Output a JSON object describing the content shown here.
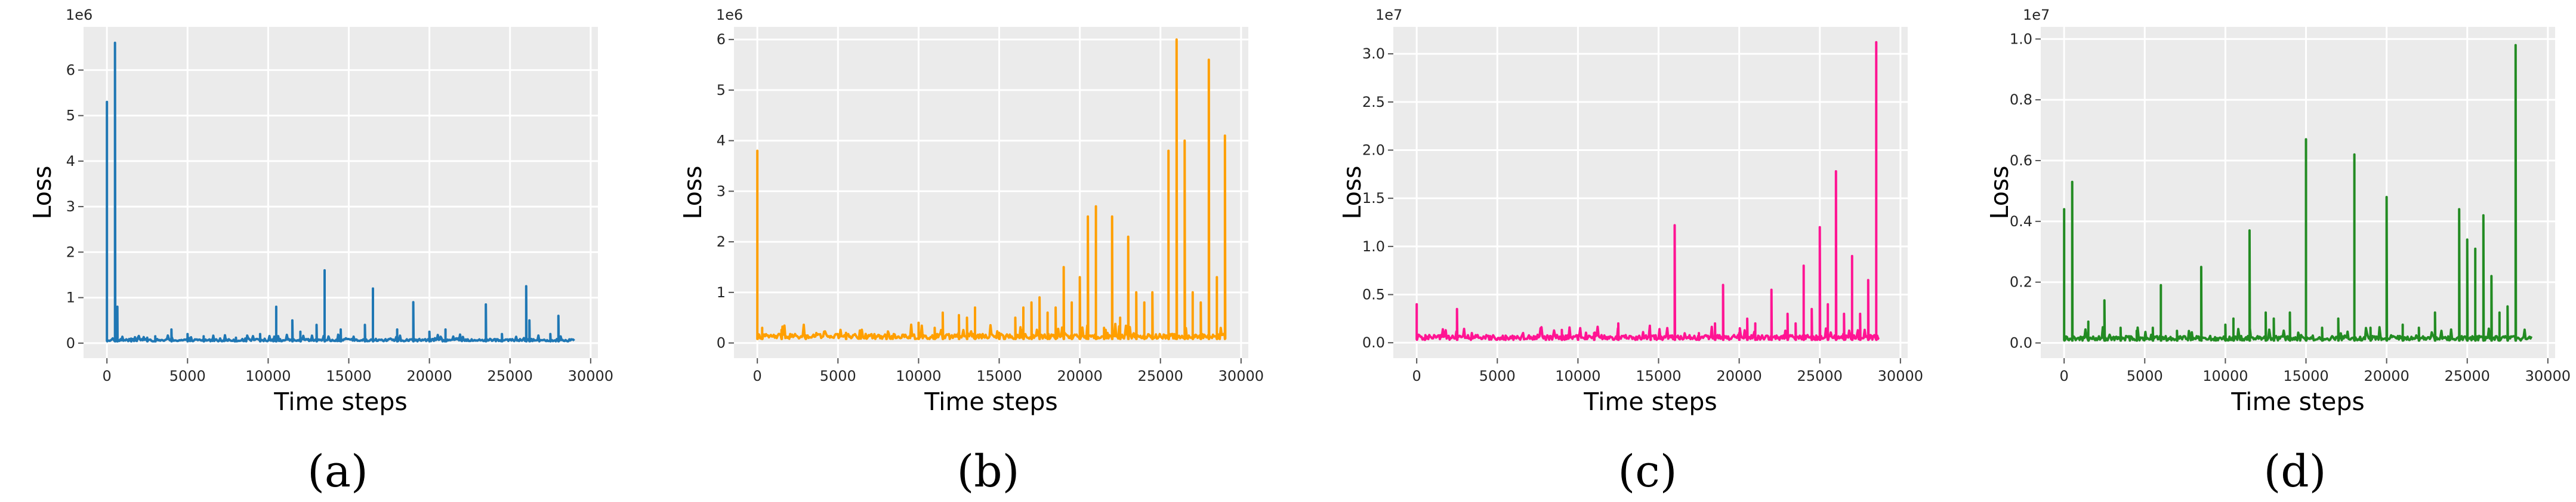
{
  "chart_data": [
    {
      "type": "line",
      "caption": "(a)",
      "color": "#1f77b4",
      "xlabel": "Time steps",
      "ylabel": "Loss",
      "exponent_label": "1e6",
      "xlim": [
        -1450,
        30450
      ],
      "ylim": [
        -0.33,
        6.95
      ],
      "xticks": [
        0,
        5000,
        10000,
        15000,
        20000,
        25000,
        30000
      ],
      "yticks": [
        0,
        1,
        2,
        3,
        4,
        5,
        6
      ],
      "ytick_labels": [
        "0",
        "1",
        "2",
        "3",
        "4",
        "5",
        "6"
      ],
      "grid": true,
      "x_end": 29000,
      "baseline": 0.04,
      "noise": 0.05,
      "spikes": [
        [
          0,
          5.3
        ],
        [
          500,
          6.6
        ],
        [
          650,
          0.8
        ],
        [
          1500,
          0.1
        ],
        [
          2500,
          0.12
        ],
        [
          3000,
          0.15
        ],
        [
          4000,
          0.3
        ],
        [
          5000,
          0.2
        ],
        [
          6000,
          0.15
        ],
        [
          8000,
          0.12
        ],
        [
          9500,
          0.2
        ],
        [
          10500,
          0.8
        ],
        [
          11500,
          0.5
        ],
        [
          12000,
          0.25
        ],
        [
          13000,
          0.4
        ],
        [
          13500,
          1.6
        ],
        [
          14500,
          0.3
        ],
        [
          16000,
          0.4
        ],
        [
          16500,
          1.2
        ],
        [
          18000,
          0.3
        ],
        [
          19000,
          0.9
        ],
        [
          20000,
          0.25
        ],
        [
          21000,
          0.3
        ],
        [
          23500,
          0.85
        ],
        [
          24500,
          0.2
        ],
        [
          26000,
          1.25
        ],
        [
          26200,
          0.5
        ],
        [
          27500,
          0.2
        ],
        [
          28000,
          0.6
        ]
      ]
    },
    {
      "type": "line",
      "caption": "(b)",
      "color": "#ff9f00",
      "xlabel": "Time steps",
      "ylabel": "Loss",
      "exponent_label": "1e6",
      "xlim": [
        -1450,
        30450
      ],
      "ylim": [
        -0.3,
        6.25
      ],
      "xticks": [
        0,
        5000,
        10000,
        15000,
        20000,
        25000,
        30000
      ],
      "yticks": [
        0,
        1,
        2,
        3,
        4,
        5,
        6
      ],
      "ytick_labels": [
        "0",
        "1",
        "2",
        "3",
        "4",
        "5",
        "6"
      ],
      "grid": true,
      "x_end": 29000,
      "baseline": 0.08,
      "noise": 0.1,
      "spikes": [
        [
          0,
          3.8
        ],
        [
          300,
          0.3
        ],
        [
          1500,
          0.1
        ],
        [
          3000,
          0.15
        ],
        [
          5500,
          0.2
        ],
        [
          8000,
          0.15
        ],
        [
          10000,
          0.4
        ],
        [
          11000,
          0.3
        ],
        [
          11500,
          0.6
        ],
        [
          12500,
          0.55
        ],
        [
          13000,
          0.5
        ],
        [
          13500,
          0.7
        ],
        [
          15000,
          0.2
        ],
        [
          16000,
          0.5
        ],
        [
          16500,
          0.7
        ],
        [
          17000,
          0.8
        ],
        [
          17500,
          0.9
        ],
        [
          18000,
          0.6
        ],
        [
          18500,
          0.7
        ],
        [
          19000,
          1.5
        ],
        [
          19500,
          0.8
        ],
        [
          20000,
          1.3
        ],
        [
          20500,
          2.5
        ],
        [
          21000,
          2.7
        ],
        [
          21500,
          0.3
        ],
        [
          22000,
          2.5
        ],
        [
          22500,
          0.5
        ],
        [
          23000,
          2.1
        ],
        [
          23500,
          1.0
        ],
        [
          24000,
          0.8
        ],
        [
          24500,
          1.0
        ],
        [
          25500,
          3.8
        ],
        [
          26000,
          6.0
        ],
        [
          26500,
          4.0
        ],
        [
          27000,
          1.0
        ],
        [
          27500,
          0.8
        ],
        [
          28000,
          5.6
        ],
        [
          28500,
          1.3
        ],
        [
          29000,
          4.1
        ]
      ]
    },
    {
      "type": "line",
      "caption": "(c)",
      "color": "#ff1493",
      "xlabel": "Time steps",
      "ylabel": "Loss",
      "exponent_label": "1e7",
      "xlim": [
        -1450,
        30450
      ],
      "ylim": [
        -0.16,
        3.28
      ],
      "xticks": [
        0,
        5000,
        10000,
        15000,
        20000,
        25000,
        30000
      ],
      "yticks": [
        0,
        0.5,
        1.0,
        1.5,
        2.0,
        2.5,
        3.0
      ],
      "ytick_labels": [
        "0.0",
        "0.5",
        "1.0",
        "1.5",
        "2.0",
        "2.5",
        "3.0"
      ],
      "grid": true,
      "x_end": 28700,
      "baseline": 0.03,
      "noise": 0.05,
      "spikes": [
        [
          0,
          0.4
        ],
        [
          500,
          0.05
        ],
        [
          2500,
          0.35
        ],
        [
          5500,
          0.04
        ],
        [
          8000,
          0.03
        ],
        [
          9000,
          0.05
        ],
        [
          10000,
          0.06
        ],
        [
          11000,
          0.1
        ],
        [
          12500,
          0.2
        ],
        [
          14500,
          0.04
        ],
        [
          16000,
          1.22
        ],
        [
          17500,
          0.1
        ],
        [
          18500,
          0.2
        ],
        [
          19000,
          0.6
        ],
        [
          20000,
          0.1
        ],
        [
          20500,
          0.25
        ],
        [
          21000,
          0.2
        ],
        [
          22000,
          0.55
        ],
        [
          23000,
          0.3
        ],
        [
          23500,
          0.2
        ],
        [
          24000,
          0.8
        ],
        [
          24500,
          0.35
        ],
        [
          25000,
          1.2
        ],
        [
          25500,
          0.4
        ],
        [
          26000,
          1.78
        ],
        [
          26500,
          0.3
        ],
        [
          27000,
          0.9
        ],
        [
          27500,
          0.3
        ],
        [
          28000,
          0.65
        ],
        [
          28500,
          3.12
        ]
      ]
    },
    {
      "type": "line",
      "caption": "(d)",
      "color": "#228b22",
      "xlabel": "Time steps",
      "ylabel": "Loss",
      "exponent_label": "1e7",
      "xlim": [
        -1450,
        30450
      ],
      "ylim": [
        -0.05,
        1.04
      ],
      "xticks": [
        0,
        5000,
        10000,
        15000,
        20000,
        25000,
        30000
      ],
      "yticks": [
        0,
        0.2,
        0.4,
        0.6,
        0.8,
        1.0
      ],
      "ytick_labels": [
        "0.0",
        "0.2",
        "0.4",
        "0.6",
        "0.8",
        "1.0"
      ],
      "grid": true,
      "x_end": 29000,
      "baseline": 0.008,
      "noise": 0.015,
      "spikes": [
        [
          0,
          0.44
        ],
        [
          500,
          0.53
        ],
        [
          1500,
          0.07
        ],
        [
          2500,
          0.14
        ],
        [
          3500,
          0.05
        ],
        [
          4500,
          0.04
        ],
        [
          5500,
          0.05
        ],
        [
          6000,
          0.19
        ],
        [
          7000,
          0.04
        ],
        [
          8500,
          0.25
        ],
        [
          10000,
          0.06
        ],
        [
          10500,
          0.08
        ],
        [
          11500,
          0.37
        ],
        [
          12500,
          0.1
        ],
        [
          13000,
          0.08
        ],
        [
          14000,
          0.1
        ],
        [
          15000,
          0.67
        ],
        [
          16000,
          0.05
        ],
        [
          17000,
          0.08
        ],
        [
          18000,
          0.62
        ],
        [
          19000,
          0.05
        ],
        [
          20000,
          0.48
        ],
        [
          21000,
          0.06
        ],
        [
          22000,
          0.05
        ],
        [
          23000,
          0.1
        ],
        [
          24500,
          0.44
        ],
        [
          25000,
          0.34
        ],
        [
          25500,
          0.31
        ],
        [
          26000,
          0.42
        ],
        [
          26500,
          0.22
        ],
        [
          27000,
          0.1
        ],
        [
          27500,
          0.12
        ],
        [
          28000,
          0.98
        ]
      ]
    }
  ]
}
